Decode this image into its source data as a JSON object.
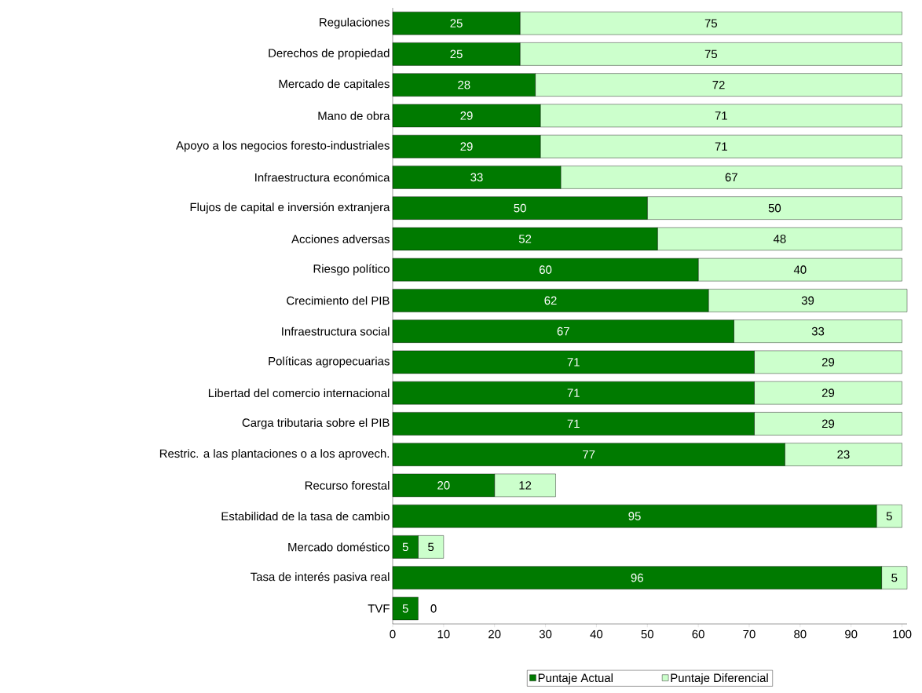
{
  "chart_data": {
    "type": "bar",
    "orientation": "horizontal",
    "stacked": true,
    "categories": [
      "Regulaciones",
      "Derechos de propiedad",
      "Mercado de capitales",
      "Mano de obra",
      "Apoyo a los negocios foresto-industriales",
      "Infraestructura económica",
      "Flujos de capital e inversión extranjera",
      "Acciones adversas",
      "Riesgo político",
      "Crecimiento del PIB",
      "Infraestructura social",
      "Políticas agropecuarias",
      "Libertad del comercio internacional",
      "Carga tributaria sobre el PIB",
      "Restric. a las plantaciones o a los aprovech.",
      "Recurso forestal",
      "Estabilidad de la tasa de cambio",
      "Mercado doméstico",
      "Tasa de interés pasiva real",
      "TVF"
    ],
    "series": [
      {
        "name": "Puntaje Actual",
        "color": "#007a00",
        "values": [
          25,
          25,
          28,
          29,
          29,
          33,
          50,
          52,
          60,
          62,
          67,
          71,
          71,
          71,
          77,
          20,
          95,
          5,
          96,
          5
        ]
      },
      {
        "name": "Puntaje Diferencial",
        "color": "#ccffcc",
        "values": [
          75,
          75,
          72,
          71,
          71,
          67,
          50,
          48,
          40,
          39,
          33,
          29,
          29,
          29,
          23,
          12,
          5,
          5,
          5,
          0
        ]
      }
    ],
    "xlim": [
      0,
      101
    ],
    "xticks": [
      0,
      10,
      20,
      30,
      40,
      50,
      60,
      70,
      80,
      90,
      100
    ],
    "data_labels": true,
    "legend": "bottom",
    "grid": false
  }
}
